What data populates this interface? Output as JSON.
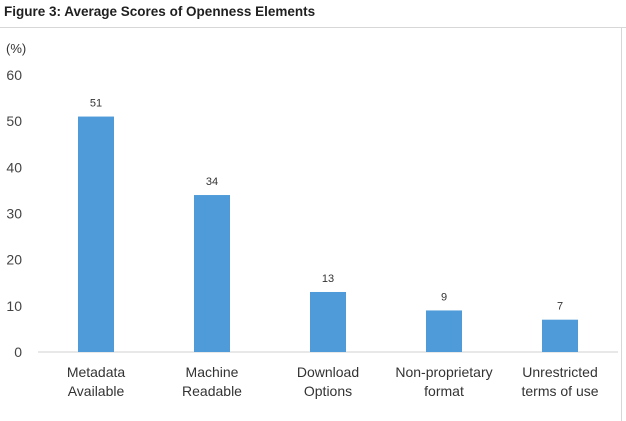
{
  "chart_data": {
    "type": "bar",
    "title": "Figure 3: Average Scores of Openness Elements",
    "ylabel": "(%)",
    "xlabel": "",
    "ylim": [
      0,
      60
    ],
    "yticks": [
      0,
      10,
      20,
      30,
      40,
      50,
      60
    ],
    "grid": false,
    "categories": [
      [
        "Metadata",
        "Available"
      ],
      [
        "Machine",
        "Readable"
      ],
      [
        "Download",
        "Options"
      ],
      [
        "Non-proprietary",
        "format"
      ],
      [
        "Unrestricted",
        "terms of use"
      ]
    ],
    "values": [
      51,
      34,
      13,
      9,
      7
    ],
    "data_labels": [
      "51",
      "34",
      "13",
      "9",
      "7"
    ],
    "bar_color": "#4f9bd9",
    "axis_color": "#d0d0d0"
  }
}
